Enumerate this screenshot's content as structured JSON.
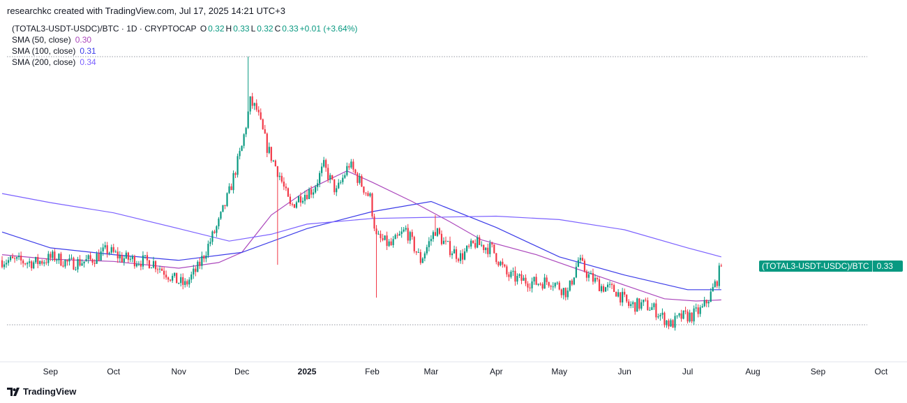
{
  "header": {
    "attribution": "researchkc created with TradingView.com, Jul 17, 2025 14:21 UTC+3"
  },
  "legend": {
    "symbol": "(TOTAL3-USDT-USDC)/BTC · 1D · CRYPTOCAP",
    "ohlc": [
      {
        "key": "O",
        "value": "0.32"
      },
      {
        "key": "H",
        "value": "0.33"
      },
      {
        "key": "L",
        "value": "0.32"
      },
      {
        "key": "C",
        "value": "0.33"
      }
    ],
    "change": "+0.01 (+3.64%)",
    "sma": [
      {
        "label": "SMA (50, close)",
        "value": "0.30",
        "color": "#ab47bc"
      },
      {
        "label": "SMA (100, close)",
        "value": "0.31",
        "color": "#3b3be8"
      },
      {
        "label": "SMA (200, close)",
        "value": "0.34",
        "color": "#7b61ff"
      }
    ]
  },
  "price_tag": {
    "symbol": "(TOTAL3-USDT-USDC)/BTC",
    "value": "0.33"
  },
  "brand": {
    "name": "TradingView"
  },
  "colors": {
    "up": "#089981",
    "down": "#f23645",
    "grid": "#9598a1"
  },
  "chart_data": {
    "type": "candlestick",
    "title": "(TOTAL3-USDT-USDC)/BTC · 1D · CRYPTOCAP",
    "x_range": [
      "2024-08-08",
      "2025-10-10"
    ],
    "y_range": [
      0.27,
      0.52
    ],
    "x_ticks": [
      {
        "label": "Sep",
        "date": "2024-09-01"
      },
      {
        "label": "Oct",
        "date": "2024-10-01"
      },
      {
        "label": "Nov",
        "date": "2024-11-01"
      },
      {
        "label": "Dec",
        "date": "2024-12-01"
      },
      {
        "label": "2025",
        "date": "2025-01-01",
        "bold": true
      },
      {
        "label": "Feb",
        "date": "2025-02-01"
      },
      {
        "label": "Mar",
        "date": "2025-03-01"
      },
      {
        "label": "Apr",
        "date": "2025-04-01"
      },
      {
        "label": "May",
        "date": "2025-05-01"
      },
      {
        "label": "Jun",
        "date": "2025-06-01"
      },
      {
        "label": "Jul",
        "date": "2025-07-01"
      },
      {
        "label": "Aug",
        "date": "2025-08-01"
      },
      {
        "label": "Sep",
        "date": "2025-09-01"
      },
      {
        "label": "Oct",
        "date": "2025-10-01"
      }
    ],
    "start_date": "2024-08-09",
    "close_anchors": [
      [
        "2024-08-09",
        0.335
      ],
      [
        "2024-08-25",
        0.333
      ],
      [
        "2024-09-03",
        0.338
      ],
      [
        "2024-09-10",
        0.332
      ],
      [
        "2024-09-20",
        0.335
      ],
      [
        "2024-09-28",
        0.344
      ],
      [
        "2024-10-05",
        0.337
      ],
      [
        "2024-10-20",
        0.333
      ],
      [
        "2024-10-30",
        0.318
      ],
      [
        "2024-11-04",
        0.313
      ],
      [
        "2024-11-10",
        0.328
      ],
      [
        "2024-11-15",
        0.348
      ],
      [
        "2024-11-20",
        0.368
      ],
      [
        "2024-11-25",
        0.395
      ],
      [
        "2024-12-01",
        0.435
      ],
      [
        "2024-12-05",
        0.475
      ],
      [
        "2024-12-08",
        0.468
      ],
      [
        "2024-12-13",
        0.435
      ],
      [
        "2024-12-19",
        0.41
      ],
      [
        "2024-12-24",
        0.382
      ],
      [
        "2024-12-29",
        0.392
      ],
      [
        "2025-01-04",
        0.398
      ],
      [
        "2025-01-09",
        0.418
      ],
      [
        "2025-01-15",
        0.395
      ],
      [
        "2025-01-21",
        0.42
      ],
      [
        "2025-01-26",
        0.405
      ],
      [
        "2025-01-31",
        0.39
      ],
      [
        "2025-02-03",
        0.355
      ],
      [
        "2025-02-10",
        0.348
      ],
      [
        "2025-02-17",
        0.362
      ],
      [
        "2025-02-24",
        0.335
      ],
      [
        "2025-03-03",
        0.362
      ],
      [
        "2025-03-08",
        0.348
      ],
      [
        "2025-03-15",
        0.338
      ],
      [
        "2025-03-22",
        0.35
      ],
      [
        "2025-03-30",
        0.345
      ],
      [
        "2025-04-06",
        0.322
      ],
      [
        "2025-04-12",
        0.318
      ],
      [
        "2025-04-20",
        0.315
      ],
      [
        "2025-04-27",
        0.317
      ],
      [
        "2025-05-05",
        0.306
      ],
      [
        "2025-05-10",
        0.335
      ],
      [
        "2025-05-15",
        0.321
      ],
      [
        "2025-05-21",
        0.312
      ],
      [
        "2025-05-28",
        0.308
      ],
      [
        "2025-06-03",
        0.295
      ],
      [
        "2025-06-10",
        0.296
      ],
      [
        "2025-06-15",
        0.292
      ],
      [
        "2025-06-20",
        0.283
      ],
      [
        "2025-06-23",
        0.278
      ],
      [
        "2025-06-28",
        0.285
      ],
      [
        "2025-07-03",
        0.286
      ],
      [
        "2025-07-08",
        0.292
      ],
      [
        "2025-07-12",
        0.305
      ],
      [
        "2025-07-15",
        0.318
      ],
      [
        "2025-07-17",
        0.331
      ]
    ],
    "wick_extremes": [
      {
        "date": "2024-12-04",
        "high": 0.515
      },
      {
        "date": "2024-12-18",
        "low": 0.331
      },
      {
        "date": "2025-02-03",
        "low": 0.302
      },
      {
        "date": "2025-03-03",
        "high": 0.375
      }
    ],
    "sma": [
      {
        "name": "SMA (50, close)",
        "color": "#ab47bc",
        "points": [
          [
            "2024-08-09",
            0.34
          ],
          [
            "2024-09-01",
            0.336
          ],
          [
            "2024-10-01",
            0.334
          ],
          [
            "2024-11-01",
            0.328
          ],
          [
            "2024-11-20",
            0.333
          ],
          [
            "2024-12-01",
            0.342
          ],
          [
            "2024-12-15",
            0.375
          ],
          [
            "2025-01-01",
            0.397
          ],
          [
            "2025-01-20",
            0.414
          ],
          [
            "2025-02-01",
            0.404
          ],
          [
            "2025-02-20",
            0.387
          ],
          [
            "2025-03-10",
            0.369
          ],
          [
            "2025-03-25",
            0.353
          ],
          [
            "2025-04-20",
            0.34
          ],
          [
            "2025-05-10",
            0.327
          ],
          [
            "2025-06-01",
            0.313
          ],
          [
            "2025-06-20",
            0.301
          ],
          [
            "2025-07-05",
            0.299
          ],
          [
            "2025-07-17",
            0.3
          ]
        ]
      },
      {
        "name": "SMA (100, close)",
        "color": "#3b3be8",
        "points": [
          [
            "2024-08-09",
            0.36
          ],
          [
            "2024-09-01",
            0.346
          ],
          [
            "2024-10-01",
            0.34
          ],
          [
            "2024-11-01",
            0.335
          ],
          [
            "2024-12-01",
            0.342
          ],
          [
            "2025-01-01",
            0.363
          ],
          [
            "2025-02-01",
            0.378
          ],
          [
            "2025-03-01",
            0.387
          ],
          [
            "2025-04-01",
            0.364
          ],
          [
            "2025-05-01",
            0.338
          ],
          [
            "2025-06-01",
            0.322
          ],
          [
            "2025-07-01",
            0.309
          ],
          [
            "2025-07-17",
            0.309
          ]
        ]
      },
      {
        "name": "SMA (200, close)",
        "color": "#7b61ff",
        "points": [
          [
            "2024-08-09",
            0.394
          ],
          [
            "2024-09-01",
            0.386
          ],
          [
            "2024-10-01",
            0.377
          ],
          [
            "2024-11-01",
            0.363
          ],
          [
            "2024-11-25",
            0.352
          ],
          [
            "2024-12-15",
            0.358
          ],
          [
            "2025-01-01",
            0.367
          ],
          [
            "2025-02-01",
            0.372
          ],
          [
            "2025-03-01",
            0.373
          ],
          [
            "2025-04-01",
            0.374
          ],
          [
            "2025-05-01",
            0.371
          ],
          [
            "2025-06-01",
            0.362
          ],
          [
            "2025-07-01",
            0.346
          ],
          [
            "2025-07-17",
            0.338
          ]
        ]
      }
    ],
    "reference_lines": [
      {
        "price": 0.515,
        "style": "dotted"
      },
      {
        "price": 0.278,
        "style": "dotted"
      }
    ],
    "last_value": 0.33
  }
}
